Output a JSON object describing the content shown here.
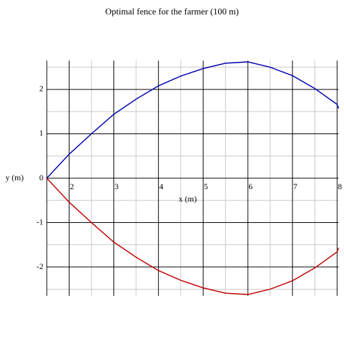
{
  "chart_data": {
    "type": "line",
    "title": "Optimal fence for the farmer (100 m)",
    "x_label": "x (m)",
    "y_label": "y (m)",
    "x": [
      1.5,
      2,
      2.5,
      3,
      3.5,
      4,
      4.5,
      5,
      5.5,
      6,
      6.5,
      7,
      7.5,
      8,
      8.03
    ],
    "series": [
      {
        "color": "#0000b0",
        "values": [
          0,
          0.54,
          1.0,
          1.44,
          1.78,
          2.08,
          2.3,
          2.47,
          2.59,
          2.62,
          2.5,
          2.31,
          2.02,
          1.66,
          1.57
        ]
      },
      {
        "color": "#c00000",
        "values": [
          0,
          -0.54,
          -1.0,
          -1.44,
          -1.78,
          -2.08,
          -2.3,
          -2.47,
          -2.59,
          -2.62,
          -2.5,
          -2.31,
          -2.02,
          -1.66,
          -1.57
        ]
      }
    ],
    "xlim": [
      1.5,
      8.03
    ],
    "ylim": [
      -2.65,
      2.65
    ],
    "xticks": [
      2,
      3,
      4,
      5,
      6,
      7,
      8
    ],
    "yticks": [
      -2,
      -1,
      0,
      1,
      2
    ],
    "grid": true
  }
}
